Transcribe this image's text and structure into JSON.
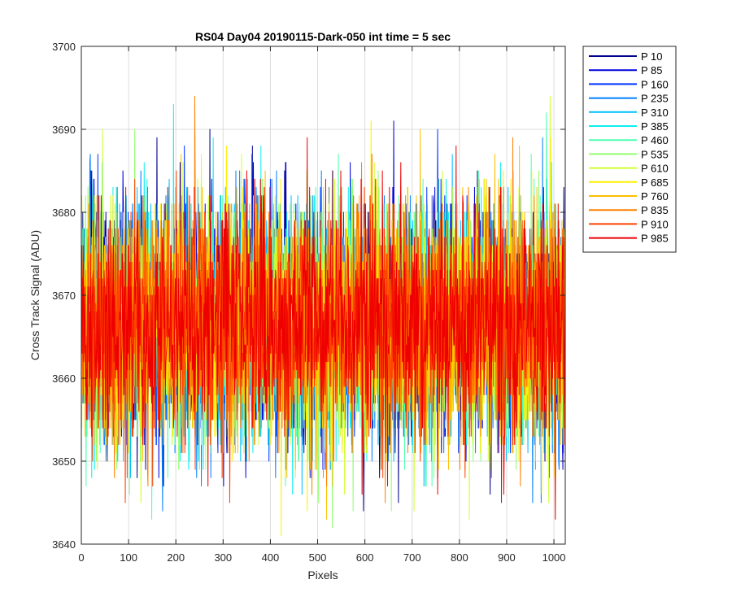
{
  "chart_data": {
    "type": "line",
    "title": "RS04 Day04 20190115-Dark-050 int time = 5 sec",
    "xlabel": "Pixels",
    "ylabel": "Cross Track Signal (ADU)",
    "xlim": [
      0,
      1024
    ],
    "ylim": [
      3640,
      3700
    ],
    "xticks": [
      "0",
      "100",
      "200",
      "300",
      "400",
      "500",
      "600",
      "700",
      "800",
      "900",
      "1000"
    ],
    "yticks": [
      "3640",
      "3650",
      "3660",
      "3670",
      "3680",
      "3690",
      "3700"
    ],
    "grid": true,
    "legend_position": "outside-top-right",
    "noise": {
      "mean": 3666.5,
      "std": 7,
      "points_per_series": 1024,
      "min": 3641,
      "max": 3700
    },
    "series": [
      {
        "name": "P 10",
        "color": "#00008f"
      },
      {
        "name": "P 85",
        "color": "#0000dc"
      },
      {
        "name": "P 160",
        "color": "#0033ff"
      },
      {
        "name": "P 235",
        "color": "#0080ff"
      },
      {
        "name": "P 310",
        "color": "#00bfff"
      },
      {
        "name": "P 385",
        "color": "#10efef"
      },
      {
        "name": "P 460",
        "color": "#50ffaf"
      },
      {
        "name": "P 535",
        "color": "#90ff6f"
      },
      {
        "name": "P 610",
        "color": "#cfff30"
      },
      {
        "name": "P 685",
        "color": "#ffef00"
      },
      {
        "name": "P 760",
        "color": "#ffbf00"
      },
      {
        "name": "P 835",
        "color": "#ff8000"
      },
      {
        "name": "P 910",
        "color": "#ff4000"
      },
      {
        "name": "P 985",
        "color": "#ee0000"
      }
    ]
  }
}
